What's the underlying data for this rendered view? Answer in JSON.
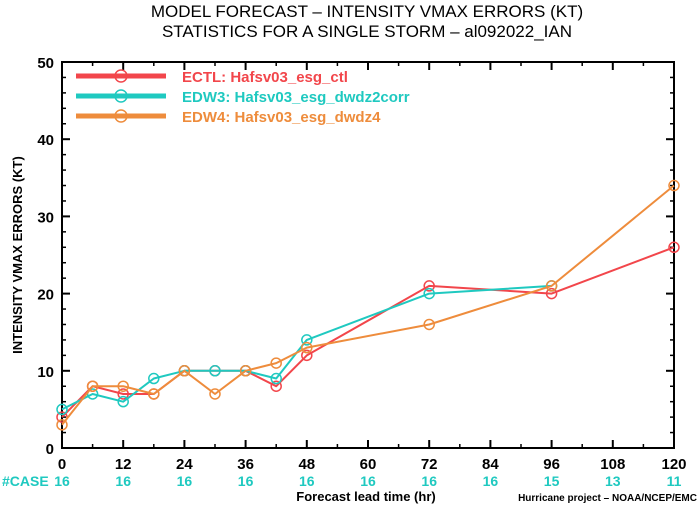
{
  "chart_data": {
    "type": "line",
    "title": "MODEL FORECAST – INTENSITY VMAX ERRORS (KT)",
    "subtitle": "STATISTICS FOR A SINGLE STORM – al092022_IAN",
    "xlabel": "Forecast lead time (hr)",
    "ylabel": "INTENSITY VMAX ERRORS (KT)",
    "xlim": [
      0,
      120
    ],
    "ylim": [
      0,
      50
    ],
    "xticks": [
      0,
      12,
      24,
      36,
      48,
      60,
      72,
      84,
      96,
      108,
      120
    ],
    "yticks": [
      0,
      10,
      20,
      30,
      40,
      50
    ],
    "legend_position": "top-left",
    "series": [
      {
        "name": "ECTL: Hafsv03_esg_ctl",
        "color": "#f2464b",
        "x": [
          0,
          6,
          12,
          18,
          24,
          30,
          36,
          42,
          48,
          72,
          96,
          120
        ],
        "y": [
          4,
          8,
          7,
          7,
          10,
          10,
          10,
          8,
          12,
          21,
          20,
          26
        ]
      },
      {
        "name": "EDW3: Hafsv03_esg_dwdz2corr",
        "color": "#1fc9c0",
        "x": [
          0,
          6,
          12,
          18,
          24,
          30,
          36,
          42,
          48,
          72,
          96
        ],
        "y": [
          5,
          7,
          6,
          9,
          10,
          10,
          10,
          9,
          14,
          20,
          21
        ]
      },
      {
        "name": "EDW4: Hafsv03_esg_dwdz4",
        "color": "#ee8c3c",
        "x": [
          0,
          6,
          12,
          18,
          24,
          30,
          36,
          42,
          48,
          72,
          96,
          120
        ],
        "y": [
          3,
          8,
          8,
          7,
          10,
          7,
          10,
          11,
          13,
          16,
          21,
          34
        ]
      }
    ],
    "cases": {
      "label": "#CASE",
      "x": [
        0,
        12,
        24,
        36,
        48,
        60,
        72,
        84,
        96,
        108,
        120
      ],
      "values": [
        "16",
        "16",
        "16",
        "16",
        "16",
        "16",
        "16",
        "16",
        "15",
        "13",
        "11"
      ]
    },
    "credit": "Hurricane project – NOAA/NCEP/EMC"
  },
  "colors": {
    "case_color": "#1fc9c0",
    "axis_color": "#000000"
  }
}
